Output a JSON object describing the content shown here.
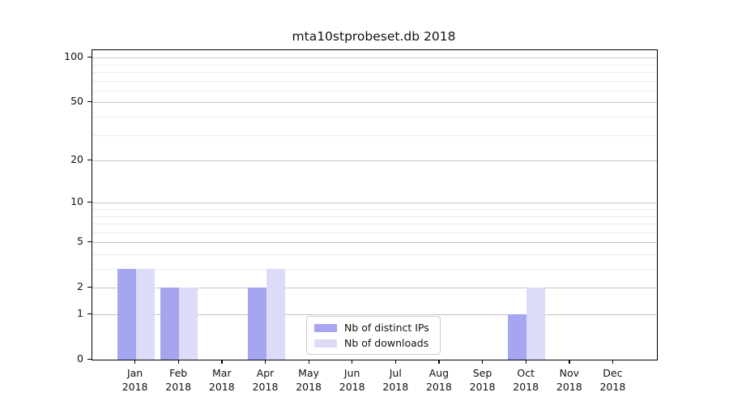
{
  "chart_data": {
    "type": "bar",
    "title": "mta10stprobeset.db 2018",
    "x_year": "2018",
    "categories": [
      "Jan",
      "Feb",
      "Mar",
      "Apr",
      "May",
      "Jun",
      "Jul",
      "Aug",
      "Sep",
      "Oct",
      "Nov",
      "Dec"
    ],
    "series": [
      {
        "name": "Nb of distinct IPs",
        "color": "#a5a5f0",
        "values": [
          3,
          2,
          0,
          2,
          0,
          0,
          0,
          0,
          0,
          1,
          0,
          0
        ]
      },
      {
        "name": "Nb of downloads",
        "color": "#dcdcf8",
        "values": [
          3,
          2,
          0,
          3,
          0,
          0,
          0,
          0,
          0,
          2,
          0,
          0
        ]
      }
    ],
    "xlabel": "",
    "ylabel": "",
    "yscale": "log1p",
    "ylim": [
      0,
      112
    ],
    "yticks": [
      0,
      1,
      2,
      5,
      10,
      20,
      50,
      100
    ],
    "minor_yticks": [
      3,
      4,
      6,
      7,
      8,
      9,
      30,
      40,
      60,
      70,
      80,
      90
    ],
    "grid": "both",
    "legend_position": "inside-bottom-center",
    "colors": {
      "major_grid": "#c6c6c6",
      "minor_grid": "#ececec",
      "spine": "#000000",
      "background": "#ffffff",
      "text": "#111111"
    }
  }
}
